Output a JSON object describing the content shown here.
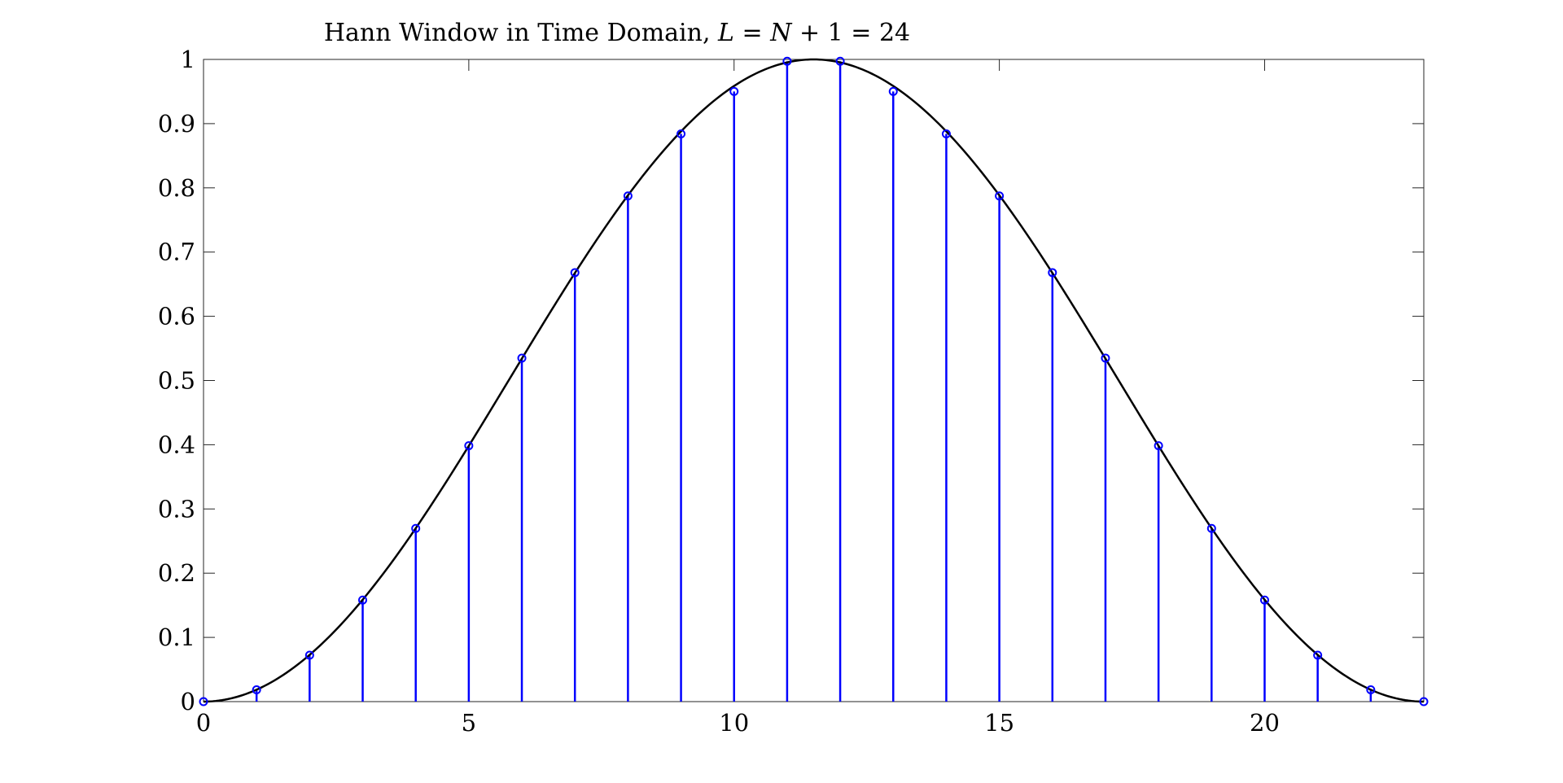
{
  "chart_data": {
    "type": "stem",
    "title": {
      "prefix": "Hann Window in Time Domain, ",
      "var_L": "L",
      "eq1": " = ",
      "var_N": "N",
      "tail": " + 1 = 24"
    },
    "xlabel": "",
    "ylabel": "",
    "xlim": [
      0,
      23
    ],
    "ylim": [
      0,
      1
    ],
    "x_ticks": [
      0,
      5,
      10,
      15,
      20
    ],
    "y_ticks": [
      0,
      0.1,
      0.2,
      0.3,
      0.4,
      0.5,
      0.6,
      0.7,
      0.8,
      0.9,
      1
    ],
    "x_tick_labels": [
      "0",
      "5",
      "10",
      "15",
      "20"
    ],
    "y_tick_labels": [
      "0",
      "0.1",
      "0.2",
      "0.3",
      "0.4",
      "0.5",
      "0.6",
      "0.7",
      "0.8",
      "0.9",
      "1"
    ],
    "grid": false,
    "box": true,
    "series": [
      {
        "kind": "stem",
        "color": "#0000ff",
        "x": [
          0,
          1,
          2,
          3,
          4,
          5,
          6,
          7,
          8,
          9,
          10,
          11,
          12,
          13,
          14,
          15,
          16,
          17,
          18,
          19,
          20,
          21,
          22,
          23
        ],
        "values": [
          0,
          0.0184,
          0.0723,
          0.1581,
          0.2696,
          0.3985,
          0.5349,
          0.668,
          0.7874,
          0.884,
          0.9501,
          0.9972,
          0.9972,
          0.9501,
          0.884,
          0.7874,
          0.668,
          0.5349,
          0.3985,
          0.2696,
          0.1581,
          0.0723,
          0.0184,
          0
        ]
      },
      {
        "kind": "line",
        "color": "#000000",
        "function": "0.5*(1-cos(2*pi*x/23))",
        "x_range": [
          0,
          23
        ]
      }
    ]
  }
}
